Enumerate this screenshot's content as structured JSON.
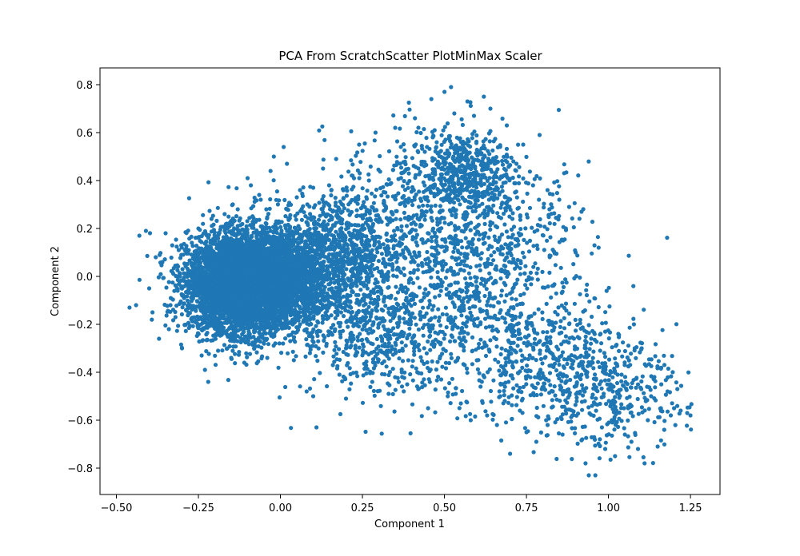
{
  "chart_data": {
    "type": "scatter",
    "title": "PCA From ScratchScatter PlotMinMax Scaler",
    "xlabel": "Component 1",
    "ylabel": "Component 2",
    "xlim": [
      -0.55,
      1.34
    ],
    "ylim": [
      -0.91,
      0.87
    ],
    "xticks": [
      -0.5,
      -0.25,
      0.0,
      0.25,
      0.5,
      0.75,
      1.0,
      1.25
    ],
    "xtick_labels": [
      "−0.50",
      "−0.25",
      "0.00",
      "0.25",
      "0.50",
      "0.75",
      "1.00",
      "1.25"
    ],
    "yticks": [
      -0.8,
      -0.6,
      -0.4,
      -0.2,
      0.0,
      0.2,
      0.4,
      0.6,
      0.8
    ],
    "ytick_labels": [
      "−0.8",
      "−0.6",
      "−0.4",
      "−0.2",
      "0.0",
      "0.2",
      "0.4",
      "0.6",
      "0.8"
    ],
    "grid": false,
    "legend": "none",
    "marker_color": "#1f77b4",
    "series": [
      {
        "points": [
          [
            -0.46,
            -0.13
          ],
          [
            -0.44,
            -0.12
          ],
          [
            -0.43,
            0.17
          ],
          [
            -0.41,
            0.19
          ],
          [
            -0.4,
            -0.05
          ],
          [
            -0.39,
            -0.15
          ],
          [
            -0.38,
            0.08
          ],
          [
            -0.37,
            -0.26
          ],
          [
            -0.36,
            0.06
          ],
          [
            -0.35,
            0.18
          ],
          [
            -0.34,
            -0.22
          ],
          [
            -0.33,
            0.02
          ],
          [
            -0.32,
            -0.17
          ],
          [
            -0.31,
            0.11
          ],
          [
            -0.3,
            -0.3
          ],
          [
            -0.29,
            0.05
          ],
          [
            -0.28,
            -0.06
          ],
          [
            -0.27,
            0.14
          ],
          [
            -0.26,
            -0.19
          ],
          [
            -0.25,
            0.2
          ],
          [
            -0.24,
            -0.33
          ],
          [
            -0.23,
            -0.39
          ],
          [
            -0.22,
            -0.44
          ],
          [
            -0.21,
            0.24
          ],
          [
            -0.19,
            -0.31
          ],
          [
            -0.17,
            0.26
          ],
          [
            -0.15,
            -0.34
          ],
          [
            -0.13,
            0.28
          ],
          [
            -0.11,
            -0.36
          ],
          [
            -0.1,
            0.41
          ],
          [
            -0.09,
            0.38
          ],
          [
            -0.08,
            -0.3
          ],
          [
            -0.06,
            0.32
          ],
          [
            -0.04,
            -0.34
          ],
          [
            -0.03,
            0.44
          ],
          [
            -0.02,
            0.5
          ],
          [
            0.01,
            0.54
          ],
          [
            0.02,
            0.47
          ],
          [
            0.03,
            -0.27
          ],
          [
            0.05,
            0.33
          ],
          [
            0.06,
            0.36
          ],
          [
            0.08,
            -0.22
          ],
          [
            0.09,
            -0.32
          ],
          [
            0.1,
            0.37
          ],
          [
            0.13,
            0.45
          ],
          [
            0.14,
            -0.29
          ],
          [
            0.16,
            -0.37
          ],
          [
            0.17,
            0.49
          ],
          [
            0.18,
            -0.41
          ],
          [
            0.2,
            -0.3
          ],
          [
            0.22,
            0.42
          ],
          [
            0.23,
            -0.33
          ],
          [
            0.24,
            0.55
          ],
          [
            0.26,
            -0.38
          ],
          [
            0.27,
            0.4
          ],
          [
            0.28,
            -0.44
          ],
          [
            0.29,
            0.6
          ],
          [
            0.31,
            -0.27
          ],
          [
            0.32,
            0.35
          ],
          [
            0.33,
            -0.49
          ],
          [
            0.35,
            0.62
          ],
          [
            0.37,
            -0.4
          ],
          [
            0.38,
            0.44
          ],
          [
            0.39,
            -0.35
          ],
          [
            0.41,
            0.66
          ],
          [
            0.42,
            -0.47
          ],
          [
            0.44,
            0.52
          ],
          [
            0.45,
            -0.55
          ],
          [
            0.46,
            0.74
          ],
          [
            0.47,
            0.61
          ],
          [
            0.49,
            -0.43
          ],
          [
            0.5,
            0.77
          ],
          [
            0.51,
            -0.5
          ],
          [
            0.52,
            0.79
          ],
          [
            0.53,
            0.68
          ],
          [
            0.55,
            -0.53
          ],
          [
            0.57,
            0.73
          ],
          [
            0.58,
            -0.6
          ],
          [
            0.59,
            0.67
          ],
          [
            0.61,
            -0.46
          ],
          [
            0.62,
            0.75
          ],
          [
            0.63,
            -0.58
          ],
          [
            0.64,
            0.7
          ],
          [
            0.66,
            -0.62
          ],
          [
            0.67,
            -0.5
          ],
          [
            0.69,
            0.63
          ],
          [
            0.7,
            -0.74
          ],
          [
            0.71,
            0.48
          ],
          [
            0.73,
            -0.56
          ],
          [
            0.74,
            0.55
          ],
          [
            0.75,
            -0.65
          ],
          [
            0.77,
            0.38
          ],
          [
            0.78,
            -0.69
          ],
          [
            0.79,
            0.59
          ],
          [
            0.81,
            -0.6
          ],
          [
            0.82,
            0.28
          ],
          [
            0.83,
            -0.48
          ],
          [
            0.85,
            0.32
          ],
          [
            0.86,
            -0.66
          ],
          [
            0.87,
            0.2
          ],
          [
            0.88,
            0.29
          ],
          [
            0.89,
            -0.58
          ],
          [
            0.9,
            0.1
          ],
          [
            0.92,
            -0.68
          ],
          [
            0.93,
            -0.78
          ],
          [
            0.94,
            -0.83
          ],
          [
            0.95,
            -0.54
          ],
          [
            0.96,
            -0.83
          ],
          [
            0.97,
            0.12
          ],
          [
            0.98,
            -0.63
          ],
          [
            0.99,
            -0.72
          ],
          [
            1.0,
            -0.47
          ],
          [
            1.01,
            -0.6
          ],
          [
            1.02,
            -0.75
          ],
          [
            1.03,
            -0.24
          ],
          [
            1.04,
            -0.41
          ],
          [
            1.05,
            -0.66
          ],
          [
            1.06,
            -0.55
          ],
          [
            1.07,
            -0.69
          ],
          [
            1.08,
            -0.3
          ],
          [
            1.09,
            -0.72
          ],
          [
            1.1,
            -0.47
          ],
          [
            1.11,
            -0.78
          ],
          [
            1.12,
            -0.6
          ],
          [
            1.13,
            -0.5
          ],
          [
            1.14,
            -0.42
          ],
          [
            1.15,
            -0.71
          ],
          [
            1.16,
            -0.55
          ],
          [
            1.17,
            -0.64
          ],
          [
            1.18,
            -0.48
          ],
          [
            1.19,
            -0.58
          ],
          [
            1.2,
            -0.55
          ],
          [
            1.21,
            -0.47
          ],
          [
            1.22,
            -0.56
          ],
          [
            1.24,
            -0.57
          ],
          [
            1.25,
            -0.58
          ],
          [
            0.1,
            -0.5
          ],
          [
            0.11,
            -0.63
          ],
          [
            0.08,
            -0.48
          ],
          [
            0.2,
            -0.51
          ]
        ],
        "clusters": [
          {
            "center": [
              -0.11,
              -0.03
            ],
            "spread": [
              0.085,
              0.1
            ],
            "count": 5200
          },
          {
            "center": [
              0.04,
              0.01
            ],
            "spread": [
              0.11,
              0.12
            ],
            "count": 1400
          },
          {
            "center": [
              0.18,
              0.12
            ],
            "spread": [
              0.1,
              0.12
            ],
            "count": 500
          },
          {
            "center": [
              0.55,
              0.44
            ],
            "spread": [
              0.08,
              0.08
            ],
            "count": 450
          },
          {
            "center": [
              0.45,
              0.25
            ],
            "spread": [
              0.16,
              0.17
            ],
            "count": 550
          },
          {
            "center": [
              0.48,
              -0.15
            ],
            "spread": [
              0.2,
              0.18
            ],
            "count": 700
          },
          {
            "center": [
              0.86,
              -0.38
            ],
            "spread": [
              0.14,
              0.13
            ],
            "count": 500
          },
          {
            "center": [
              1.02,
              -0.52
            ],
            "spread": [
              0.11,
              0.1
            ],
            "count": 180
          },
          {
            "center": [
              0.3,
              -0.25
            ],
            "spread": [
              0.12,
              0.12
            ],
            "count": 300
          },
          {
            "center": [
              0.68,
              0.1
            ],
            "spread": [
              0.14,
              0.18
            ],
            "count": 300
          }
        ]
      }
    ]
  }
}
